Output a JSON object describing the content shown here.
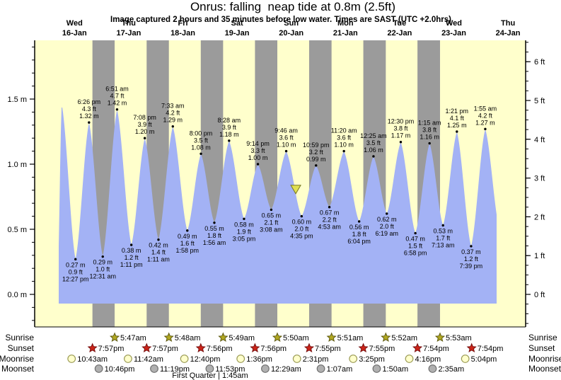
{
  "title": "Onrus: falling  neap tide at 0.8m (2.5ft)",
  "subtitle": "Image captured 2 hours and 35 minutes before low water. Times are SAST (UTC +2.0hrs)",
  "colors": {
    "plot_bg": "#ffffcc",
    "night_band": "#9b9b9b",
    "tide_fill": "#a3b2f5",
    "date_red": "#ff2222",
    "sunrise_star": "#b1a821",
    "sunrise_star_edge": "#5e5a12",
    "sunset_star": "#cc2418",
    "sunset_star_edge": "#771111",
    "moonrise_fill": "#ffffcc",
    "moonrise_edge": "#9a9a55",
    "moonset_fill": "#b0b0b0",
    "moonset_edge": "#707070",
    "capture_fill": "#e0e050",
    "capture_edge": "#777722"
  },
  "days": [
    {
      "name": "Wed",
      "date": "16-Jan"
    },
    {
      "name": "Thu",
      "date": "17-Jan"
    },
    {
      "name": "Fri",
      "date": "18-Jan"
    },
    {
      "name": "Sat",
      "date": "19-Jan"
    },
    {
      "name": "Sun",
      "date": "20-Jan"
    },
    {
      "name": "Mon",
      "date": "21-Jan"
    },
    {
      "name": "Tue",
      "date": "22-Jan"
    },
    {
      "name": "Wed",
      "date": "23-Jan"
    },
    {
      "name": "Thu",
      "date": "24-Jan"
    }
  ],
  "y_axis_left": {
    "unit": "m",
    "tick_labels": [
      "0.0 m",
      "0.5 m",
      "1.0 m",
      "1.5 m"
    ]
  },
  "y_axis_right": {
    "unit": "ft",
    "tick_labels": [
      "0 ft",
      "1 ft",
      "2 ft",
      "3 ft",
      "4 ft",
      "5 ft",
      "6 ft"
    ]
  },
  "chart_data": {
    "type": "area",
    "description": "tide height curve, days 16-Jan..24-Jan, day 0 = Wed 16-Jan",
    "extremes": [
      {
        "day": 0,
        "time": "4:30 am",
        "m": "0.05",
        "kind": "low",
        "labeled": false
      },
      {
        "day": 0,
        "time": "6:20 am",
        "m": "1.46",
        "kind": "high",
        "labeled": false
      },
      {
        "day": 0,
        "time": "12:27 pm",
        "m": "0.27",
        "ft": "0.9",
        "kind": "low"
      },
      {
        "day": 0,
        "time": "6:26 pm",
        "m": "1.32",
        "ft": "4.3",
        "kind": "high"
      },
      {
        "day": 1,
        "time": "12:31 am",
        "m": "0.29",
        "ft": "1.0",
        "kind": "low"
      },
      {
        "day": 1,
        "time": "6:51 am",
        "m": "1.42",
        "ft": "4.7",
        "kind": "high"
      },
      {
        "day": 1,
        "time": "1:11 pm",
        "m": "0.38",
        "ft": "1.2",
        "kind": "low"
      },
      {
        "day": 1,
        "time": "7:08 pm",
        "m": "1.20",
        "ft": "3.9",
        "kind": "high"
      },
      {
        "day": 2,
        "time": "1:11 am",
        "m": "0.42",
        "ft": "1.4",
        "kind": "low"
      },
      {
        "day": 2,
        "time": "7:33 am",
        "m": "1.29",
        "ft": "4.2",
        "kind": "high"
      },
      {
        "day": 2,
        "time": "1:58 pm",
        "m": "0.49",
        "ft": "1.6",
        "kind": "low"
      },
      {
        "day": 2,
        "time": "8:00 pm",
        "m": "1.08",
        "ft": "3.5",
        "kind": "high"
      },
      {
        "day": 3,
        "time": "1:56 am",
        "m": "0.55",
        "ft": "1.8",
        "kind": "low"
      },
      {
        "day": 3,
        "time": "8:28 am",
        "m": "1.18",
        "ft": "3.9",
        "kind": "high"
      },
      {
        "day": 3,
        "time": "3:05 pm",
        "m": "0.58",
        "ft": "1.9",
        "kind": "low"
      },
      {
        "day": 3,
        "time": "9:14 pm",
        "m": "1.00",
        "ft": "3.3",
        "kind": "high"
      },
      {
        "day": 4,
        "time": "3:08 am",
        "m": "0.65",
        "ft": "2.1",
        "kind": "low"
      },
      {
        "day": 4,
        "time": "9:46 am",
        "m": "1.10",
        "ft": "3.6",
        "kind": "high"
      },
      {
        "day": 4,
        "time": "4:35 pm",
        "m": "0.60",
        "ft": "2.0",
        "kind": "low"
      },
      {
        "day": 4,
        "time": "10:59 pm",
        "m": "0.99",
        "ft": "3.2",
        "kind": "high"
      },
      {
        "day": 5,
        "time": "4:53 am",
        "m": "0.67",
        "ft": "2.2",
        "kind": "low"
      },
      {
        "day": 5,
        "time": "11:20 am",
        "m": "1.10",
        "ft": "3.6",
        "kind": "high"
      },
      {
        "day": 5,
        "time": "6:04 pm",
        "m": "0.56",
        "ft": "1.8",
        "kind": "low"
      },
      {
        "day": 6,
        "time": "12:25 am",
        "m": "1.06",
        "ft": "3.5",
        "kind": "high"
      },
      {
        "day": 6,
        "time": "6:19 am",
        "m": "0.62",
        "ft": "2.0",
        "kind": "low"
      },
      {
        "day": 6,
        "time": "12:30 pm",
        "m": "1.17",
        "ft": "3.8",
        "kind": "high"
      },
      {
        "day": 6,
        "time": "6:58 pm",
        "m": "0.47",
        "ft": "1.5",
        "kind": "low"
      },
      {
        "day": 7,
        "time": "1:15 am",
        "m": "1.16",
        "ft": "3.8",
        "kind": "high"
      },
      {
        "day": 7,
        "time": "7:13 am",
        "m": "0.53",
        "ft": "1.7",
        "kind": "low"
      },
      {
        "day": 7,
        "time": "1:21 pm",
        "m": "1.25",
        "ft": "4.1",
        "kind": "high"
      },
      {
        "day": 7,
        "time": "7:39 pm",
        "m": "0.37",
        "ft": "1.2",
        "kind": "low"
      },
      {
        "day": 8,
        "time": "1:55 am",
        "m": "1.27",
        "ft": "4.2",
        "kind": "high"
      },
      {
        "day": 8,
        "time": "8:15 am",
        "m": "0.50",
        "kind": "low",
        "labeled": false
      }
    ],
    "capture_marker": {
      "day": 4,
      "time": "2:00 pm",
      "m": "0.80"
    }
  },
  "astro": {
    "labels": {
      "sunrise": "Sunrise",
      "sunset": "Sunset",
      "moonrise": "Moonrise",
      "moonset": "Moonset"
    },
    "sunrise": [
      {
        "day": 1,
        "time": "5:47am"
      },
      {
        "day": 2,
        "time": "5:48am"
      },
      {
        "day": 3,
        "time": "5:49am"
      },
      {
        "day": 4,
        "time": "5:50am"
      },
      {
        "day": 5,
        "time": "5:51am"
      },
      {
        "day": 6,
        "time": "5:52am"
      },
      {
        "day": 7,
        "time": "5:53am"
      }
    ],
    "sunset": [
      {
        "day": 0,
        "time": "7:57pm"
      },
      {
        "day": 1,
        "time": "7:57pm"
      },
      {
        "day": 2,
        "time": "7:56pm"
      },
      {
        "day": 3,
        "time": "7:56pm"
      },
      {
        "day": 4,
        "time": "7:55pm"
      },
      {
        "day": 5,
        "time": "7:55pm"
      },
      {
        "day": 6,
        "time": "7:54pm"
      },
      {
        "day": 7,
        "time": "7:54pm"
      }
    ],
    "moonrise": [
      {
        "day": 0,
        "time": "10:43am"
      },
      {
        "day": 1,
        "time": "11:42am"
      },
      {
        "day": 2,
        "time": "12:40pm"
      },
      {
        "day": 3,
        "time": "1:36pm"
      },
      {
        "day": 4,
        "time": "2:31pm"
      },
      {
        "day": 5,
        "time": "3:25pm"
      },
      {
        "day": 6,
        "time": "4:16pm"
      },
      {
        "day": 7,
        "time": "5:04pm"
      }
    ],
    "moonset": [
      {
        "day": 0,
        "time": "10:46pm"
      },
      {
        "day": 1,
        "time": "11:19pm"
      },
      {
        "day": 2,
        "time": "11:53pm"
      },
      {
        "day": 4,
        "time": "12:29am"
      },
      {
        "day": 5,
        "time": "1:07am"
      },
      {
        "day": 6,
        "time": "1:50am"
      },
      {
        "day": 7,
        "time": "2:35am"
      }
    ],
    "moon_phase": "First Quarter | 1:45am"
  }
}
